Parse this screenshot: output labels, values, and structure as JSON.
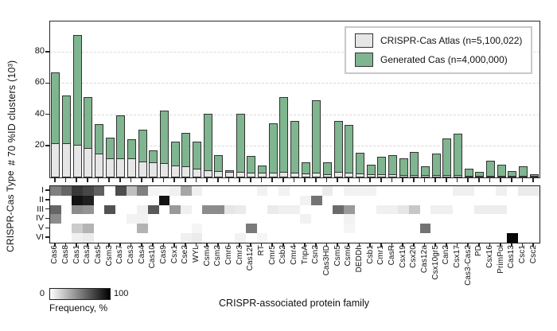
{
  "chart_data": {
    "type": [
      "bar",
      "heatmap"
    ],
    "categories": [
      "Cas6",
      "Cas8",
      "Cas1",
      "Cas2",
      "Cas5",
      "Csm3",
      "Cas7",
      "Cas3",
      "Cas4",
      "Cas10",
      "Cas9",
      "Csx1",
      "Cse2",
      "WYL",
      "Csm4",
      "Csm2",
      "Cmr6",
      "Cmr3",
      "Cas12f",
      "RT",
      "Cmr5",
      "Csb2",
      "Cmr4",
      "TnpA",
      "Csn2",
      "Cas3HD",
      "Csm5",
      "Csm6",
      "DEDDh",
      "Csb1",
      "Cmr1",
      "CasR",
      "Csx19",
      "Csx20",
      "Cas12a",
      "Csx10gr5",
      "Can2",
      "Csx17",
      "Cas3-Cas2",
      "PD",
      "Csx16",
      "PrimPol",
      "Cas13",
      "Csc1",
      "Csc2"
    ],
    "bar": {
      "type": "bar",
      "stacked": true,
      "ylabel": "# 70 %ID clusters (10³)",
      "yticks": [
        20,
        40,
        60,
        80
      ],
      "ylim": [
        0,
        100
      ],
      "grid": "horizontal-dashed",
      "legend_position": "top-right",
      "series": [
        {
          "name": "CRISPR-Cas Atlas (n=5,100,022)",
          "color": "#e6e6e6",
          "values": [
            22,
            22,
            21,
            19,
            15.5,
            12,
            12,
            12,
            10,
            9.5,
            9,
            7.5,
            7,
            5.5,
            4.5,
            4,
            3.5,
            3.5,
            3,
            3,
            3,
            3.5,
            3,
            2.5,
            3,
            2,
            3.5,
            3,
            2.5,
            2,
            2,
            2,
            1.5,
            1.5,
            1.5,
            1.5,
            1.5,
            1.5,
            1,
            1,
            1,
            1,
            1,
            1,
            0.5
          ]
        },
        {
          "name": "Generated Cas (n=4,000,000)",
          "color": "#7fb58f",
          "values": [
            46,
            31,
            71,
            33,
            19.5,
            14,
            28,
            13,
            21,
            8,
            34,
            16,
            22,
            18,
            36.5,
            10.5,
            1.5,
            37.5,
            11,
            5,
            32,
            48.5,
            33.5,
            7.5,
            47,
            8,
            33,
            31,
            14,
            6.5,
            11.5,
            12.5,
            11,
            15.5,
            6,
            14.5,
            24,
            27,
            5,
            3,
            10,
            7.5,
            3.5,
            6.5,
            1.5
          ]
        }
      ]
    },
    "heatmap": {
      "type": "heatmap",
      "row_label": "CRISPR-Cas Type",
      "rows": [
        "I",
        "II",
        "III",
        "IV",
        "V",
        "VI"
      ],
      "xlabel": "CRISPR-associated protein family",
      "values_frequency_pct": [
        [
          50,
          60,
          78,
          72,
          62,
          0,
          70,
          25,
          50,
          4,
          3,
          6,
          35,
          6,
          0,
          0,
          0,
          0,
          0,
          5,
          0,
          5,
          0,
          0,
          0,
          8,
          0,
          5,
          5,
          5,
          0,
          0,
          0,
          0,
          0,
          0,
          0,
          6,
          6,
          0,
          0,
          6,
          0,
          8,
          8
        ],
        [
          0,
          0,
          93,
          88,
          0,
          0,
          0,
          0,
          0,
          0,
          92,
          0,
          0,
          0,
          0,
          0,
          0,
          0,
          0,
          0,
          0,
          0,
          0,
          5,
          55,
          0,
          0,
          0,
          0,
          0,
          0,
          0,
          0,
          0,
          0,
          0,
          0,
          0,
          0,
          0,
          0,
          0,
          0,
          0,
          0
        ],
        [
          60,
          0,
          45,
          42,
          0,
          68,
          0,
          0,
          6,
          65,
          0,
          40,
          6,
          0,
          45,
          45,
          10,
          8,
          0,
          0,
          8,
          6,
          6,
          0,
          0,
          0,
          58,
          40,
          0,
          0,
          6,
          6,
          10,
          22,
          0,
          6,
          6,
          0,
          0,
          7,
          7,
          7,
          0,
          0,
          0
        ],
        [
          45,
          0,
          0,
          0,
          0,
          0,
          0,
          5,
          5,
          0,
          0,
          0,
          0,
          0,
          0,
          0,
          0,
          0,
          0,
          0,
          0,
          0,
          0,
          5,
          0,
          0,
          0,
          5,
          0,
          0,
          0,
          0,
          0,
          0,
          0,
          0,
          0,
          0,
          0,
          0,
          0,
          0,
          0,
          0,
          0
        ],
        [
          0,
          0,
          20,
          30,
          0,
          0,
          0,
          0,
          30,
          0,
          0,
          0,
          0,
          4,
          0,
          0,
          0,
          0,
          52,
          0,
          0,
          0,
          0,
          0,
          0,
          0,
          0,
          4,
          0,
          0,
          0,
          0,
          0,
          0,
          55,
          0,
          0,
          0,
          0,
          0,
          0,
          0,
          0,
          0,
          0
        ],
        [
          0,
          0,
          6,
          8,
          0,
          0,
          0,
          0,
          0,
          0,
          0,
          0,
          6,
          8,
          0,
          0,
          0,
          5,
          0,
          4,
          0,
          0,
          0,
          0,
          0,
          0,
          0,
          0,
          0,
          0,
          0,
          0,
          0,
          0,
          0,
          0,
          0,
          0,
          0,
          0,
          0,
          0,
          97,
          0,
          0
        ]
      ],
      "colorbar": {
        "min_label": "0",
        "max_label": "100",
        "title": "Frequency, %",
        "min_color": "#ffffff",
        "max_color": "#000000"
      }
    }
  }
}
